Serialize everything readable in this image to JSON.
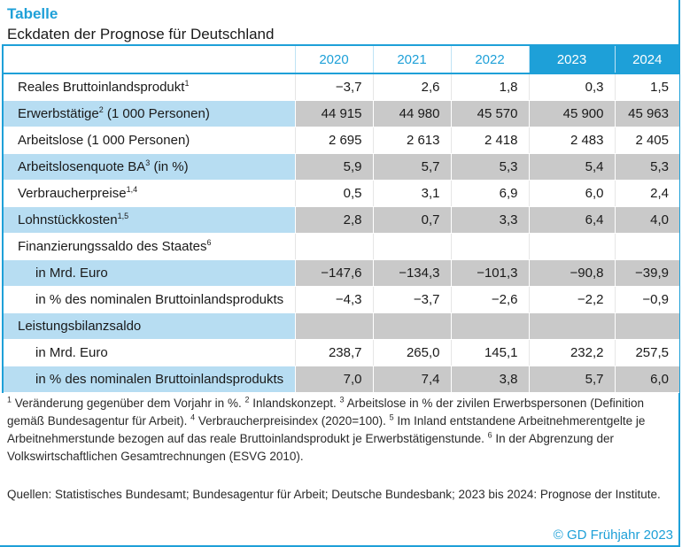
{
  "header": {
    "title": "Tabelle",
    "subtitle": "Eckdaten der Prognose für Deutschland"
  },
  "colors": {
    "accent": "#1ea0d8",
    "row_blue": "#b7ddf2",
    "row_grey": "#c9c9c9"
  },
  "table": {
    "years": [
      "2020",
      "2021",
      "2022",
      "2023",
      "2024"
    ],
    "forecast_years": [
      "2023",
      "2024"
    ],
    "rows": [
      {
        "label": "Reales Bruttoinlandsprodukt",
        "sup": "1",
        "values": [
          "−3,7",
          "2,6",
          "1,8",
          "0,3",
          "1,5"
        ]
      },
      {
        "label": "Erwerbstätige",
        "sup": "2",
        "label_suffix": " (1 000 Personen)",
        "values": [
          "44 915",
          "44 980",
          "45 570",
          "45 900",
          "45 963"
        ]
      },
      {
        "label": "Arbeitslose (1 000 Personen)",
        "sup": "",
        "values": [
          "2 695",
          "2 613",
          "2 418",
          "2 483",
          "2 405"
        ]
      },
      {
        "label": "Arbeitslosenquote BA",
        "sup": "3",
        "label_suffix": " (in %)",
        "values": [
          "5,9",
          "5,7",
          "5,3",
          "5,4",
          "5,3"
        ]
      },
      {
        "label": "Verbraucherpreise",
        "sup": "1,4",
        "values": [
          "0,5",
          "3,1",
          "6,9",
          "6,0",
          "2,4"
        ]
      },
      {
        "label": "Lohnstückkosten",
        "sup": "1,5",
        "values": [
          "2,8",
          "0,7",
          "3,3",
          "6,4",
          "4,0"
        ]
      },
      {
        "label": "Finanzierungssaldo des Staates",
        "sup": "6",
        "values": [
          "",
          "",
          "",
          "",
          ""
        ]
      },
      {
        "label": "in Mrd. Euro",
        "sup": "",
        "indent": true,
        "values": [
          "−147,6",
          "−134,3",
          "−101,3",
          "−90,8",
          "−39,9"
        ]
      },
      {
        "label": "in % des nominalen Bruttoinlandsprodukts",
        "sup": "",
        "indent": true,
        "values": [
          "−4,3",
          "−3,7",
          "−2,6",
          "−2,2",
          "−0,9"
        ]
      },
      {
        "label": "Leistungsbilanzsaldo",
        "sup": "",
        "values": [
          "",
          "",
          "",
          "",
          ""
        ]
      },
      {
        "label": "in Mrd. Euro",
        "sup": "",
        "indent": true,
        "values": [
          "238,7",
          "265,0",
          "145,1",
          "232,2",
          "257,5"
        ]
      },
      {
        "label": "in % des nominalen Bruttoinlandsprodukts",
        "sup": "",
        "indent": true,
        "values": [
          "7,0",
          "7,4",
          "3,8",
          "5,7",
          "6,0"
        ]
      }
    ]
  },
  "footnotes": {
    "n1": "1",
    "t1": " Veränderung gegenüber dem Vorjahr in %. ",
    "n2": "2",
    "t2": " Inlandskonzept. ",
    "n3": "3",
    "t3": " Arbeitslose in % der zivilen Erwerbspersonen (Definition gemäß Bundesagentur für Arbeit). ",
    "n4": "4",
    "t4": " Verbraucherpreisindex (2020=100). ",
    "n5": "5",
    "t5": " Im Inland entstandene Arbeitnehmerentgelte je Arbeitnehmerstunde bezogen auf das reale Bruttoinlandsprodukt je Erwerbstätigenstunde. ",
    "n6": "6",
    "t6": " In der Abgrenzung der Volkswirtschaftlichen Gesamtrechnungen (ESVG 2010)."
  },
  "sources": "Quellen: Statistisches Bundesamt; Bundesagentur für Arbeit; Deutsche Bundesbank; 2023 bis 2024: Prognose der Institute.",
  "copyright": "© GD Frühjahr 2023"
}
